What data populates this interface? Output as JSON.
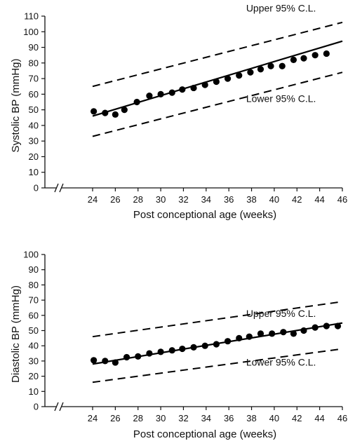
{
  "chart_data": [
    {
      "type": "scatter",
      "xlabel": "Post conceptional age (weeks)",
      "ylabel": "Systolic BP (mmHg)",
      "xlim": [
        24,
        46
      ],
      "ylim": [
        0,
        110
      ],
      "xticks": [
        24,
        26,
        28,
        30,
        32,
        34,
        36,
        38,
        40,
        42,
        44,
        46
      ],
      "yticks": [
        0,
        10,
        20,
        30,
        40,
        50,
        60,
        70,
        80,
        90,
        100,
        110
      ],
      "grid": false,
      "axis_break": true,
      "series": [
        {
          "kind": "points",
          "x": [
            24.1,
            25.1,
            26.0,
            26.8,
            27.9,
            29.0,
            30.0,
            31.0,
            31.9,
            32.9,
            33.9,
            34.9,
            35.9,
            36.9,
            37.9,
            38.8,
            39.7,
            40.7,
            41.7,
            42.6,
            43.6,
            44.6
          ],
          "y": [
            49,
            48,
            47,
            50,
            55,
            59,
            60,
            61,
            63,
            64,
            66,
            68,
            70,
            72,
            74,
            76,
            78,
            78,
            82,
            83,
            85,
            86
          ]
        },
        {
          "kind": "fit",
          "style": "solid",
          "x": [
            24,
            46
          ],
          "y": [
            46,
            94
          ]
        },
        {
          "kind": "upper_limit",
          "style": "dashed",
          "x": [
            24,
            46
          ],
          "y": [
            65,
            106
          ]
        },
        {
          "kind": "lower_limit",
          "style": "dashed",
          "x": [
            24,
            46
          ],
          "y": [
            33,
            74
          ]
        }
      ],
      "annotations": [
        {
          "text": "Upper 95% C.L.",
          "x": 40.6,
          "y": 113
        },
        {
          "text": "Lower 95% C.L.",
          "x": 40.6,
          "y": 55
        }
      ]
    },
    {
      "type": "scatter",
      "xlabel": "Post conceptional age (weeks)",
      "ylabel": "Diastolic BP (mmHg)",
      "xlim": [
        24,
        46
      ],
      "ylim": [
        0,
        100
      ],
      "xticks": [
        24,
        26,
        28,
        30,
        32,
        34,
        36,
        38,
        40,
        42,
        44,
        46
      ],
      "yticks": [
        0,
        10,
        20,
        30,
        40,
        50,
        60,
        70,
        80,
        90,
        100
      ],
      "grid": false,
      "axis_break": true,
      "series": [
        {
          "kind": "points",
          "x": [
            24.1,
            25.1,
            26.0,
            27.0,
            28.0,
            29.0,
            30.0,
            31.0,
            31.9,
            32.9,
            33.9,
            34.9,
            35.9,
            36.9,
            37.8,
            38.8,
            39.8,
            40.8,
            41.7,
            42.6,
            43.6,
            44.6,
            45.6
          ],
          "y": [
            30.5,
            30,
            29,
            32.5,
            33,
            35,
            36,
            37,
            38,
            39,
            40,
            41,
            43,
            45,
            46,
            48,
            48,
            49,
            48,
            50,
            52,
            53,
            53
          ]
        },
        {
          "kind": "fit",
          "style": "solid",
          "x": [
            24,
            46
          ],
          "y": [
            28,
            55
          ]
        },
        {
          "kind": "upper_limit",
          "style": "dashed",
          "x": [
            24,
            46
          ],
          "y": [
            46,
            69
          ]
        },
        {
          "kind": "lower_limit",
          "style": "dashed",
          "x": [
            24,
            46
          ],
          "y": [
            16,
            38
          ]
        }
      ],
      "annotations": [
        {
          "text": "Upper 95% C.L.",
          "x": 40.6,
          "y": 59
        },
        {
          "text": "Lower 95% C.L.",
          "x": 40.6,
          "y": 27
        }
      ]
    }
  ]
}
